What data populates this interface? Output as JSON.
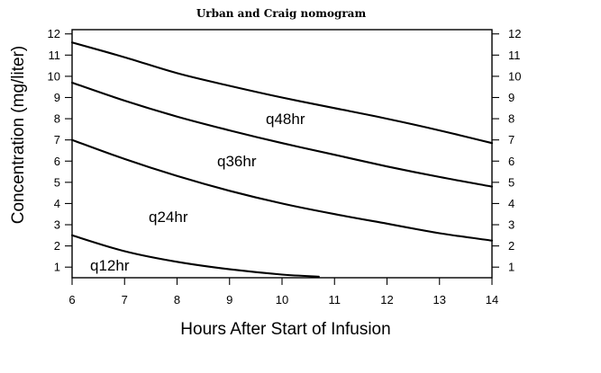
{
  "chart_data": {
    "type": "line",
    "title": "Urban and Craig nomogram",
    "xlabel": "Hours After Start of Infusion",
    "ylabel": "Concentration (mg/liter)",
    "xlim": [
      6,
      14
    ],
    "ylim": [
      0.5,
      12.2
    ],
    "x_ticks": [
      "6",
      "7",
      "8",
      "9",
      "10",
      "11",
      "12",
      "13",
      "14"
    ],
    "y_ticks": [
      "1",
      "2",
      "3",
      "4",
      "5",
      "6",
      "7",
      "8",
      "9",
      "10",
      "11",
      "12"
    ],
    "right_axis_mirrors_left": true,
    "grid": false,
    "series": [
      {
        "name": "q48hr",
        "x": [
          6,
          7,
          8,
          9,
          10,
          11,
          12,
          13,
          14
        ],
        "y": [
          11.6,
          10.9,
          10.15,
          9.55,
          9.0,
          8.5,
          8.0,
          7.45,
          6.85
        ]
      },
      {
        "name": "q36hr",
        "x": [
          6,
          7,
          8,
          9,
          10,
          11,
          12,
          13,
          14
        ],
        "y": [
          9.7,
          8.85,
          8.1,
          7.45,
          6.85,
          6.3,
          5.75,
          5.25,
          4.8
        ]
      },
      {
        "name": "q24hr",
        "x": [
          6,
          7,
          8,
          9,
          10,
          11,
          12,
          13,
          14
        ],
        "y": [
          7.0,
          6.1,
          5.3,
          4.6,
          4.0,
          3.5,
          3.05,
          2.6,
          2.25
        ]
      },
      {
        "name": "q12hr",
        "x": [
          6,
          7,
          8,
          9,
          10,
          10.7
        ],
        "y": [
          2.5,
          1.75,
          1.25,
          0.9,
          0.65,
          0.55
        ]
      }
    ]
  }
}
